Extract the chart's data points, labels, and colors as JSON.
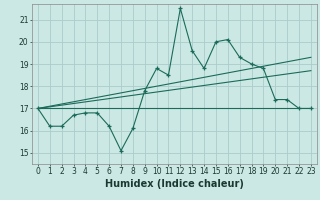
{
  "xlabel": "Humidex (Indice chaleur)",
  "bg_color": "#cce8e4",
  "grid_color": "#aaccca",
  "line_color": "#1a6b5a",
  "xlim": [
    -0.5,
    23.5
  ],
  "ylim": [
    14.5,
    21.7
  ],
  "yticks": [
    15,
    16,
    17,
    18,
    19,
    20,
    21
  ],
  "xticks": [
    0,
    1,
    2,
    3,
    4,
    5,
    6,
    7,
    8,
    9,
    10,
    11,
    12,
    13,
    14,
    15,
    16,
    17,
    18,
    19,
    20,
    21,
    22,
    23
  ],
  "x": [
    0,
    1,
    2,
    3,
    4,
    5,
    6,
    7,
    8,
    9,
    10,
    11,
    12,
    13,
    14,
    15,
    16,
    17,
    18,
    19,
    20,
    21,
    22,
    23
  ],
  "y_main": [
    17.0,
    16.2,
    16.2,
    16.7,
    16.8,
    16.8,
    16.2,
    15.1,
    16.1,
    17.8,
    18.8,
    18.5,
    21.5,
    19.6,
    18.8,
    20.0,
    20.1,
    19.3,
    19.0,
    18.8,
    17.4,
    17.4,
    17.0,
    17.0
  ],
  "trend1_x": [
    0,
    23
  ],
  "trend1_y": [
    17.0,
    17.0
  ],
  "trend2_x": [
    0,
    23
  ],
  "trend2_y": [
    17.0,
    18.7
  ],
  "trend3_x": [
    0,
    23
  ],
  "trend3_y": [
    17.0,
    19.3
  ],
  "tick_fontsize": 5.5,
  "xlabel_fontsize": 7
}
